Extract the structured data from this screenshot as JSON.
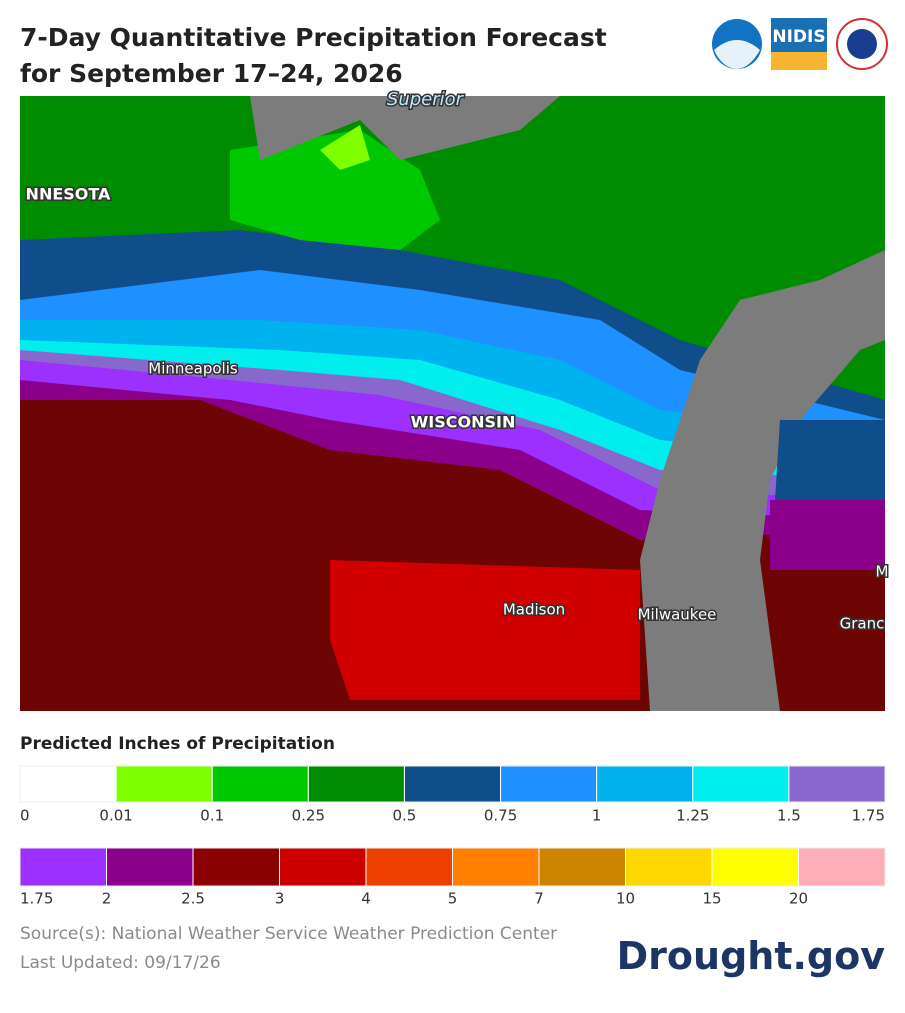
{
  "header": {
    "title": "7-Day Quantitative Precipitation Forecast for September 17–24, 2026",
    "logo_text": "NIDIS"
  },
  "map": {
    "labels": [
      "Superior",
      "NNESOTA",
      "Minneapolis",
      "WISCONSIN",
      "Madison",
      "Milwaukee",
      "Granc",
      "M"
    ]
  },
  "legend": {
    "title": "Predicted Inches of Precipitation",
    "rows": [
      {
        "colors": [
          "#ffffff",
          "#7fff00",
          "#00c800",
          "#008c00",
          "#104e8b",
          "#1e90ff",
          "#00b2ee",
          "#00eeee",
          "#8968cd"
        ],
        "labels": [
          0,
          0.01,
          0.1,
          0.25,
          0.5,
          0.75,
          1,
          1.25,
          1.5,
          1.75
        ]
      },
      {
        "colors": [
          "#9b30ff",
          "#8b008b",
          "#8b0000",
          "#cd0000",
          "#ee4000",
          "#ff7f00",
          "#cd8500",
          "#ffd700",
          "#ffff00",
          "#ffaeb9"
        ],
        "labels": [
          1.75,
          2,
          2.5,
          3,
          4,
          5,
          7,
          10,
          15,
          20
        ]
      }
    ]
  },
  "footer": {
    "source": "Source(s): National Weather Service Weather Prediction Center",
    "updated": "Last Updated: 09/17/26",
    "brand": "Drought.gov"
  }
}
